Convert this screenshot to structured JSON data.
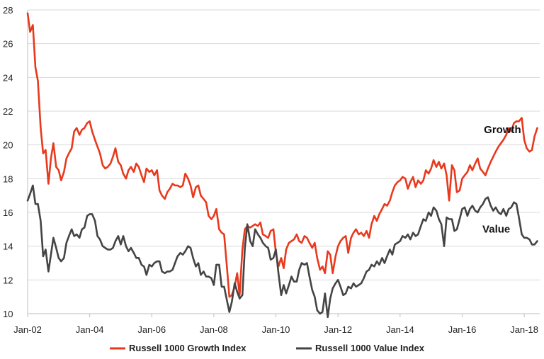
{
  "chart_data": {
    "type": "line",
    "title": "",
    "xlabel": "",
    "ylabel": "",
    "ylim": [
      10,
      28
    ],
    "yticks": [
      10,
      12,
      14,
      16,
      18,
      20,
      22,
      24,
      26,
      28
    ],
    "xlim": [
      2002.0,
      2018.5
    ],
    "xticks": [
      {
        "value": 2002.0,
        "label": "Jan-02"
      },
      {
        "value": 2004.0,
        "label": "Jan-04"
      },
      {
        "value": 2006.0,
        "label": "Jan-06"
      },
      {
        "value": 2008.0,
        "label": "Jan-08"
      },
      {
        "value": 2010.0,
        "label": "Jan-10"
      },
      {
        "value": 2012.0,
        "label": "Jan-12"
      },
      {
        "value": 2014.0,
        "label": "Jan-14"
      },
      {
        "value": 2016.0,
        "label": "Jan-16"
      },
      {
        "value": 2018.0,
        "label": "Jan-18"
      }
    ],
    "grid": "horizontal",
    "legend_position": "bottom",
    "series": [
      {
        "name": "Russell 1000 Growth Index",
        "color": "#e8391d",
        "x": [
          2002.0,
          2002.08,
          2002.17,
          2002.25,
          2002.33,
          2002.42,
          2002.5,
          2002.58,
          2002.67,
          2002.75,
          2002.83,
          2002.92,
          2003.0,
          2003.08,
          2003.17,
          2003.25,
          2003.33,
          2003.42,
          2003.5,
          2003.58,
          2003.67,
          2003.75,
          2003.83,
          2003.92,
          2004.0,
          2004.08,
          2004.17,
          2004.25,
          2004.33,
          2004.42,
          2004.5,
          2004.58,
          2004.67,
          2004.75,
          2004.83,
          2004.92,
          2005.0,
          2005.08,
          2005.17,
          2005.25,
          2005.33,
          2005.42,
          2005.5,
          2005.58,
          2005.67,
          2005.75,
          2005.83,
          2005.92,
          2006.0,
          2006.08,
          2006.17,
          2006.25,
          2006.33,
          2006.42,
          2006.5,
          2006.58,
          2006.67,
          2006.75,
          2006.83,
          2006.92,
          2007.0,
          2007.08,
          2007.17,
          2007.25,
          2007.33,
          2007.42,
          2007.5,
          2007.58,
          2007.67,
          2007.75,
          2007.83,
          2007.92,
          2008.0,
          2008.08,
          2008.17,
          2008.25,
          2008.33,
          2008.42,
          2008.5,
          2008.58,
          2008.67,
          2008.75,
          2008.83,
          2008.92,
          2009.0,
          2009.08,
          2009.17,
          2009.25,
          2009.33,
          2009.42,
          2009.5,
          2009.58,
          2009.67,
          2009.75,
          2009.83,
          2009.92,
          2010.0,
          2010.08,
          2010.17,
          2010.25,
          2010.33,
          2010.42,
          2010.5,
          2010.58,
          2010.67,
          2010.75,
          2010.83,
          2010.92,
          2011.0,
          2011.08,
          2011.17,
          2011.25,
          2011.33,
          2011.42,
          2011.5,
          2011.58,
          2011.67,
          2011.75,
          2011.83,
          2011.92,
          2012.0,
          2012.08,
          2012.17,
          2012.25,
          2012.33,
          2012.42,
          2012.5,
          2012.58,
          2012.67,
          2012.75,
          2012.83,
          2012.92,
          2013.0,
          2013.08,
          2013.17,
          2013.25,
          2013.33,
          2013.42,
          2013.5,
          2013.58,
          2013.67,
          2013.75,
          2013.83,
          2013.92,
          2014.0,
          2014.08,
          2014.17,
          2014.25,
          2014.33,
          2014.42,
          2014.5,
          2014.58,
          2014.67,
          2014.75,
          2014.83,
          2014.92,
          2015.0,
          2015.08,
          2015.17,
          2015.25,
          2015.33,
          2015.42,
          2015.5,
          2015.58,
          2015.67,
          2015.75,
          2015.83,
          2015.92,
          2016.0,
          2016.08,
          2016.17,
          2016.25,
          2016.33,
          2016.42,
          2016.5,
          2016.58,
          2016.67,
          2016.75,
          2016.83,
          2016.92,
          2017.0,
          2017.08,
          2017.17,
          2017.25,
          2017.33,
          2017.42,
          2017.5,
          2017.58,
          2017.67,
          2017.75,
          2017.83,
          2017.92,
          2018.0,
          2018.08,
          2018.17,
          2018.25,
          2018.33,
          2018.42
        ],
        "values": [
          27.8,
          26.7,
          27.1,
          24.6,
          23.8,
          21.0,
          19.5,
          19.7,
          17.7,
          19.2,
          20.1,
          18.7,
          18.5,
          17.9,
          18.4,
          19.2,
          19.5,
          19.8,
          20.8,
          21.0,
          20.6,
          20.9,
          21.0,
          21.3,
          21.4,
          20.8,
          20.3,
          19.9,
          19.5,
          18.8,
          18.6,
          18.7,
          18.9,
          19.3,
          19.8,
          19.0,
          18.8,
          18.3,
          18.0,
          18.5,
          18.7,
          18.4,
          18.9,
          18.7,
          18.2,
          17.8,
          18.6,
          18.4,
          18.5,
          18.2,
          18.5,
          17.3,
          17.0,
          16.8,
          17.2,
          17.4,
          17.7,
          17.6,
          17.6,
          17.5,
          17.6,
          18.3,
          18.0,
          17.6,
          16.9,
          17.5,
          17.6,
          17.0,
          16.8,
          16.6,
          15.8,
          15.6,
          15.8,
          16.2,
          15.0,
          14.8,
          14.7,
          12.8,
          11.0,
          11.1,
          11.6,
          12.4,
          11.1,
          13.8,
          15.0,
          15.2,
          15.1,
          15.2,
          15.3,
          15.2,
          15.4,
          14.7,
          14.6,
          14.5,
          14.9,
          15.0,
          13.6,
          12.8,
          13.3,
          12.7,
          13.8,
          14.2,
          14.3,
          14.4,
          14.7,
          14.3,
          14.2,
          14.6,
          14.5,
          14.2,
          13.9,
          14.2,
          13.3,
          12.6,
          12.8,
          12.4,
          13.7,
          13.5,
          12.4,
          13.4,
          14.0,
          14.3,
          14.5,
          14.6,
          13.6,
          14.5,
          14.8,
          15.0,
          14.7,
          14.8,
          14.6,
          14.9,
          14.5,
          15.3,
          15.8,
          15.5,
          15.9,
          16.2,
          16.5,
          16.4,
          16.7,
          17.2,
          17.6,
          17.8,
          17.9,
          18.1,
          18.0,
          17.4,
          17.8,
          18.1,
          17.5,
          17.9,
          17.7,
          17.9,
          18.5,
          18.3,
          18.6,
          19.1,
          18.7,
          19.0,
          18.6,
          18.9,
          18.2,
          16.7,
          18.8,
          18.5,
          17.2,
          17.3,
          18.0,
          18.2,
          18.4,
          18.8,
          18.5,
          18.9,
          19.2,
          18.6,
          18.4,
          18.2,
          18.6,
          19.0,
          19.3,
          19.6,
          19.9,
          20.1,
          20.3,
          20.6,
          21.0,
          20.8,
          21.3,
          21.4,
          21.4,
          21.6,
          20.3,
          19.8,
          19.6,
          19.7,
          20.5,
          21.0
        ]
      },
      {
        "name": "Russell 1000 Value Index",
        "color": "#444444",
        "x": [
          2002.0,
          2002.08,
          2002.17,
          2002.25,
          2002.33,
          2002.42,
          2002.5,
          2002.58,
          2002.67,
          2002.75,
          2002.83,
          2002.92,
          2003.0,
          2003.08,
          2003.17,
          2003.25,
          2003.33,
          2003.42,
          2003.5,
          2003.58,
          2003.67,
          2003.75,
          2003.83,
          2003.92,
          2004.0,
          2004.08,
          2004.17,
          2004.25,
          2004.33,
          2004.42,
          2004.5,
          2004.58,
          2004.67,
          2004.75,
          2004.83,
          2004.92,
          2005.0,
          2005.08,
          2005.17,
          2005.25,
          2005.33,
          2005.42,
          2005.5,
          2005.58,
          2005.67,
          2005.75,
          2005.83,
          2005.92,
          2006.0,
          2006.08,
          2006.17,
          2006.25,
          2006.33,
          2006.42,
          2006.5,
          2006.58,
          2006.67,
          2006.75,
          2006.83,
          2006.92,
          2007.0,
          2007.08,
          2007.17,
          2007.25,
          2007.33,
          2007.42,
          2007.5,
          2007.58,
          2007.67,
          2007.75,
          2007.83,
          2007.92,
          2008.0,
          2008.08,
          2008.17,
          2008.25,
          2008.33,
          2008.42,
          2008.5,
          2008.58,
          2008.67,
          2008.75,
          2008.83,
          2008.92,
          2009.0,
          2009.08,
          2009.17,
          2009.25,
          2009.33,
          2009.42,
          2009.5,
          2009.58,
          2009.67,
          2009.75,
          2009.83,
          2009.92,
          2010.0,
          2010.08,
          2010.17,
          2010.25,
          2010.33,
          2010.42,
          2010.5,
          2010.58,
          2010.67,
          2010.75,
          2010.83,
          2010.92,
          2011.0,
          2011.08,
          2011.17,
          2011.25,
          2011.33,
          2011.42,
          2011.5,
          2011.58,
          2011.67,
          2011.75,
          2011.83,
          2011.92,
          2012.0,
          2012.08,
          2012.17,
          2012.25,
          2012.33,
          2012.42,
          2012.5,
          2012.58,
          2012.67,
          2012.75,
          2012.83,
          2012.92,
          2013.0,
          2013.08,
          2013.17,
          2013.25,
          2013.33,
          2013.42,
          2013.5,
          2013.58,
          2013.67,
          2013.75,
          2013.83,
          2013.92,
          2014.0,
          2014.08,
          2014.17,
          2014.25,
          2014.33,
          2014.42,
          2014.5,
          2014.58,
          2014.67,
          2014.75,
          2014.83,
          2014.92,
          2015.0,
          2015.08,
          2015.17,
          2015.25,
          2015.33,
          2015.42,
          2015.5,
          2015.58,
          2015.67,
          2015.75,
          2015.83,
          2015.92,
          2016.0,
          2016.08,
          2016.17,
          2016.25,
          2016.33,
          2016.42,
          2016.5,
          2016.58,
          2016.67,
          2016.75,
          2016.83,
          2016.92,
          2017.0,
          2017.08,
          2017.17,
          2017.25,
          2017.33,
          2017.42,
          2017.5,
          2017.58,
          2017.67,
          2017.75,
          2017.83,
          2017.92,
          2018.0,
          2018.08,
          2018.17,
          2018.25,
          2018.33,
          2018.42
        ],
        "values": [
          16.7,
          17.1,
          17.6,
          16.5,
          16.5,
          15.5,
          13.4,
          13.8,
          12.5,
          13.5,
          14.5,
          13.9,
          13.3,
          13.1,
          13.3,
          14.2,
          14.6,
          15.0,
          14.6,
          14.7,
          14.5,
          15.0,
          15.1,
          15.8,
          15.9,
          15.9,
          15.5,
          14.6,
          14.4,
          14.0,
          13.9,
          13.8,
          13.8,
          13.9,
          14.3,
          14.6,
          14.1,
          14.6,
          14.0,
          13.7,
          13.9,
          13.6,
          13.3,
          13.3,
          12.9,
          12.8,
          12.3,
          12.9,
          12.8,
          13.0,
          13.1,
          13.1,
          12.5,
          12.4,
          12.5,
          12.5,
          12.6,
          13.0,
          13.4,
          13.6,
          13.5,
          13.7,
          14.0,
          13.9,
          13.3,
          12.8,
          13.0,
          12.3,
          12.5,
          12.2,
          12.2,
          12.1,
          11.7,
          12.9,
          12.9,
          11.6,
          11.6,
          10.8,
          10.1,
          10.7,
          11.8,
          11.3,
          10.9,
          11.1,
          13.9,
          15.3,
          14.3,
          14.0,
          15.0,
          14.7,
          14.5,
          14.2,
          14.0,
          13.9,
          13.2,
          13.3,
          13.8,
          12.4,
          11.1,
          11.7,
          11.2,
          11.7,
          12.2,
          11.9,
          11.9,
          12.6,
          13.0,
          12.9,
          13.0,
          12.2,
          11.4,
          11.0,
          10.2,
          10.0,
          10.1,
          11.2,
          9.8,
          10.9,
          11.5,
          11.8,
          12.0,
          11.6,
          11.1,
          11.2,
          11.6,
          11.5,
          11.8,
          11.6,
          11.7,
          11.8,
          12.1,
          12.5,
          12.6,
          12.9,
          12.8,
          13.1,
          12.9,
          13.3,
          13.0,
          13.4,
          13.8,
          13.5,
          14.1,
          14.2,
          14.3,
          14.6,
          14.5,
          14.7,
          14.4,
          14.8,
          14.6,
          14.7,
          15.2,
          15.6,
          15.5,
          16.0,
          15.8,
          16.3,
          16.1,
          15.6,
          15.3,
          14.0,
          15.7,
          15.6,
          15.6,
          14.9,
          15.0,
          15.6,
          16.2,
          16.3,
          15.8,
          16.2,
          16.4,
          16.1,
          16.0,
          16.3,
          16.5,
          16.8,
          16.9,
          16.4,
          16.1,
          16.3,
          16.0,
          15.9,
          16.2,
          15.8,
          16.2,
          16.3,
          16.6,
          16.5,
          15.7,
          14.7,
          14.5,
          14.5,
          14.4,
          14.1,
          14.1,
          14.3
        ]
      }
    ],
    "annotations": [
      {
        "text": "Growth",
        "x": 2017.3,
        "y": 20.7
      },
      {
        "text": "Value",
        "x": 2017.1,
        "y": 14.8
      }
    ]
  }
}
